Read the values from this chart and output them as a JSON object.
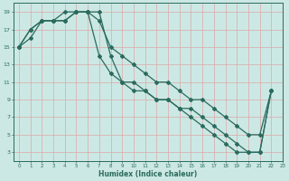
{
  "xlabel": "Humidex (Indice chaleur)",
  "bg_color": "#cce8e4",
  "grid_color": "#dba8a8",
  "line_color": "#2a6b5e",
  "xlim": [
    -0.5,
    23
  ],
  "ylim": [
    2,
    20
  ],
  "xticks": [
    0,
    1,
    2,
    3,
    4,
    5,
    6,
    7,
    8,
    9,
    10,
    11,
    12,
    13,
    14,
    15,
    16,
    17,
    18,
    19,
    20,
    21,
    22,
    23
  ],
  "yticks": [
    3,
    5,
    7,
    9,
    11,
    13,
    15,
    17,
    19
  ],
  "curve1_x": [
    0,
    1,
    2,
    3,
    4,
    5,
    6,
    7,
    8,
    9,
    10,
    11,
    12,
    13,
    14,
    15,
    16,
    17,
    18,
    19,
    20,
    21,
    22
  ],
  "curve1_y": [
    15,
    16,
    18,
    18,
    19,
    19,
    19,
    18,
    15,
    14,
    13,
    12,
    11,
    11,
    10,
    9,
    9,
    8,
    7,
    6,
    5,
    5,
    10
  ],
  "curve2_x": [
    0,
    1,
    2,
    3,
    4,
    5,
    6,
    7,
    8,
    9,
    10,
    11,
    12,
    13,
    14,
    15,
    16,
    17,
    18,
    19,
    20,
    21,
    22
  ],
  "curve2_y": [
    15,
    17,
    18,
    18,
    18,
    19,
    19,
    14,
    12,
    11,
    10,
    10,
    9,
    9,
    8,
    7,
    6,
    5,
    4,
    3,
    3,
    3,
    10
  ],
  "curve3_x": [
    0,
    1,
    2,
    3,
    4,
    5,
    6,
    7,
    8,
    9,
    10,
    11,
    12,
    13,
    14,
    15,
    16,
    17,
    18,
    19,
    20,
    21,
    22
  ],
  "curve3_y": [
    15,
    17,
    18,
    18,
    18,
    19,
    19,
    19,
    14,
    11,
    11,
    10,
    9,
    9,
    8,
    8,
    7,
    6,
    5,
    4,
    3,
    3,
    10
  ]
}
